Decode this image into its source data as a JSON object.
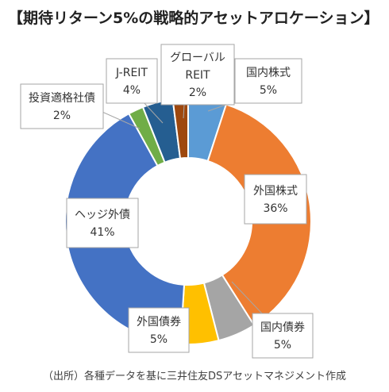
{
  "title": "【期待リターン5%の戦略的アセットアロケーション】",
  "source_note": "（出所）各種データを基に三井住友DSアセットマネジメント作成",
  "chart_data": {
    "type": "pie",
    "variant": "donut",
    "title": "【期待リターン5%の戦略的アセットアロケーション】",
    "unit": "%",
    "slices": [
      {
        "label": "国内株式",
        "value": 5,
        "label_text": "5%",
        "color": "#5b9bd5"
      },
      {
        "label": "外国株式",
        "value": 36,
        "label_text": "36%",
        "color": "#ed7d31"
      },
      {
        "label": "国内債券",
        "value": 5,
        "label_text": "5%",
        "color": "#a5a5a5"
      },
      {
        "label": "外国債券",
        "value": 5,
        "label_text": "5%",
        "color": "#ffc000"
      },
      {
        "label": "ヘッジ外債",
        "value": 41,
        "label_text": "41%",
        "color": "#4472c4"
      },
      {
        "label": "投資適格社債",
        "value": 2,
        "label_text": "2%",
        "color": "#70ad47"
      },
      {
        "label": "J-REIT",
        "value": 4,
        "label_text": "4%",
        "color": "#255e91"
      },
      {
        "label": "グローバルREIT",
        "label_lines": [
          "グローバル",
          "REIT"
        ],
        "value": 2,
        "label_text": "2%",
        "color": "#9e480e"
      }
    ]
  }
}
